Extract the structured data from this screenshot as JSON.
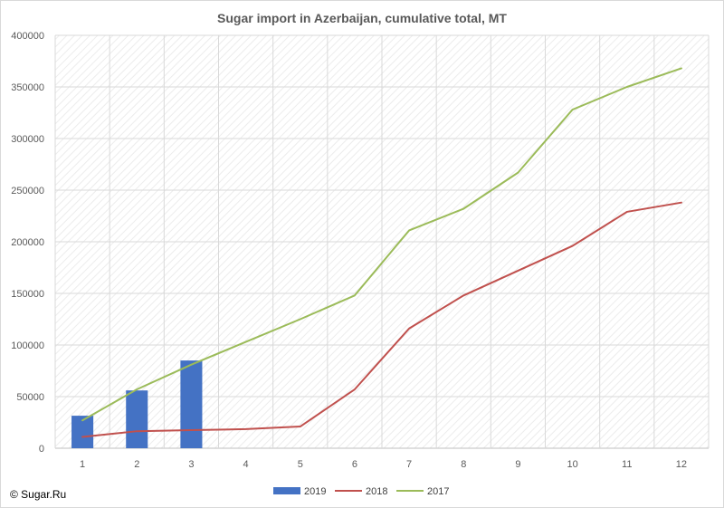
{
  "chart_data": {
    "type": "bar+line",
    "title": "Sugar import in Azerbaijan, cumulative total, MT",
    "xlabel": "",
    "ylabel": "",
    "categories": [
      "1",
      "2",
      "3",
      "4",
      "5",
      "6",
      "7",
      "8",
      "9",
      "10",
      "11",
      "12"
    ],
    "ylim": [
      0,
      400000
    ],
    "yticks": [
      0,
      50000,
      100000,
      150000,
      200000,
      250000,
      300000,
      350000,
      400000
    ],
    "grid": true,
    "legend_position": "bottom",
    "series": [
      {
        "name": "2019",
        "kind": "bar",
        "color": "#4472c4",
        "values": [
          31500,
          56000,
          85000,
          null,
          null,
          null,
          null,
          null,
          null,
          null,
          null,
          null
        ]
      },
      {
        "name": "2018",
        "kind": "line",
        "color": "#c0504d",
        "values": [
          11000,
          16500,
          17500,
          18500,
          21000,
          57000,
          116000,
          148000,
          172000,
          196000,
          229000,
          238000
        ]
      },
      {
        "name": "2017",
        "kind": "line",
        "color": "#9bbb59",
        "values": [
          27000,
          57000,
          81000,
          103000,
          125000,
          148000,
          211000,
          232000,
          267000,
          328000,
          350000,
          368000
        ]
      }
    ]
  },
  "footer": {
    "copyright": "© Sugar.Ru"
  }
}
